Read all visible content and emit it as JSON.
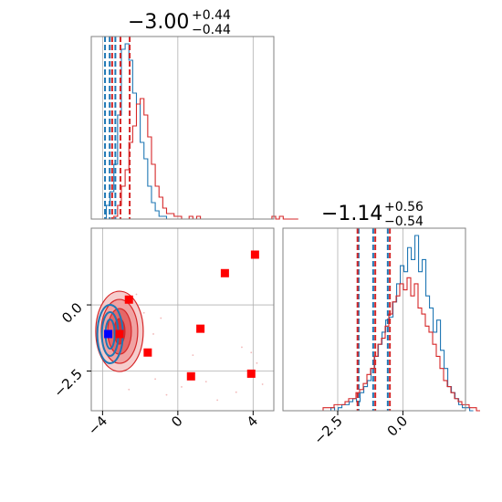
{
  "colors": {
    "series_blue": "#1f77b4",
    "series_red": "#d62728",
    "marker_red": "#ff0000",
    "marker_blue": "#0000ff",
    "grid": "#b0b0b0",
    "frame": "#808080"
  },
  "panels": {
    "p1": {
      "title_value": "−3.00",
      "title_sup": "+0.44",
      "title_sub": "−0.44"
    },
    "p2": {
      "title_value": "−1.14",
      "title_sup": "+0.56",
      "title_sub": "−0.54"
    }
  },
  "chart_data": [
    {
      "type": "histogram",
      "panel": "marginal-param-1",
      "xlim": [
        -4.6,
        5.1
      ],
      "grid": true,
      "bin_width": 0.2,
      "series": [
        {
          "color": "blue",
          "bin_start": -4.6,
          "counts": [
            0,
            0,
            0,
            0,
            5,
            10,
            20,
            38,
            62,
            64,
            58,
            46,
            42,
            28,
            22,
            12,
            6,
            3,
            1,
            1,
            0,
            0,
            0,
            0
          ],
          "quantile_lines": [
            -3.87,
            -3.62,
            -3.32
          ]
        },
        {
          "color": "red",
          "bin_start": -4.6,
          "counts": [
            0,
            0,
            0,
            0,
            0,
            0,
            1,
            5,
            12,
            18,
            28,
            34,
            42,
            44,
            38,
            30,
            20,
            12,
            8,
            4,
            2,
            2,
            1,
            1,
            0,
            0,
            1,
            0,
            1,
            0,
            0,
            0,
            0,
            0,
            0,
            0,
            0,
            0,
            0,
            0,
            0,
            0,
            0,
            0,
            0,
            0,
            0,
            0,
            1,
            0,
            1,
            0,
            0,
            0,
            0
          ],
          "quantile_lines": [
            -3.49,
            -3.05,
            -2.56
          ]
        }
      ]
    },
    {
      "type": "scatter",
      "panel": "joint-param-1-vs-param-2",
      "xlim": [
        -4.6,
        5.1
      ],
      "ylim": [
        -4.0,
        2.9
      ],
      "x_ticks": [
        -4,
        0,
        4
      ],
      "x_tick_labels": [
        "−4",
        "0",
        "4"
      ],
      "y_ticks": [
        0.0,
        -2.5
      ],
      "y_tick_labels": [
        "0.0",
        "−2.5"
      ],
      "grid": true,
      "series": [
        {
          "color": "red",
          "marker": "square",
          "points": [
            [
              4.1,
              1.9
            ],
            [
              2.5,
              1.2
            ],
            [
              -2.6,
              0.2
            ],
            [
              1.2,
              -0.9
            ],
            [
              -3.1,
              -1.1
            ],
            [
              -1.6,
              -1.8
            ],
            [
              0.7,
              -2.7
            ],
            [
              3.9,
              -2.6
            ]
          ]
        },
        {
          "color": "blue",
          "marker": "square",
          "points": [
            [
              -3.7,
              -1.1
            ]
          ]
        }
      ],
      "density_regions": {
        "red_center": [
          -3.1,
          -1.0
        ],
        "blue_center": [
          -3.6,
          -1.1
        ]
      }
    },
    {
      "type": "histogram",
      "panel": "marginal-param-2",
      "xlim": [
        -4.6,
        2.4
      ],
      "x_ticks": [
        -2.5,
        0.0
      ],
      "x_tick_labels": [
        "−2.5",
        "0.0"
      ],
      "grid": true,
      "bin_width": 0.14,
      "series": [
        {
          "color": "blue",
          "bin_start": -2.9,
          "counts": [
            0,
            1,
            0,
            1,
            2,
            2,
            3,
            4,
            3,
            6,
            8,
            10,
            14,
            18,
            22,
            26,
            30,
            31,
            36,
            42,
            48,
            46,
            54,
            50,
            58,
            46,
            50,
            38,
            34,
            26,
            30,
            20,
            14,
            8,
            6,
            4,
            2,
            1,
            1,
            0
          ],
          "quantile_lines": [
            -1.7,
            -1.14,
            -0.58
          ]
        },
        {
          "color": "red",
          "bin_start": -3.2,
          "counts": [
            0,
            1,
            1,
            1,
            2,
            2,
            2,
            3,
            4,
            4,
            6,
            7,
            9,
            12,
            14,
            18,
            22,
            24,
            28,
            32,
            36,
            38,
            42,
            40,
            44,
            38,
            42,
            34,
            32,
            28,
            26,
            22,
            18,
            14,
            10,
            8,
            6,
            4,
            3,
            2,
            2,
            1,
            1,
            0
          ],
          "quantile_lines": [
            -1.74,
            -1.06,
            -0.5
          ]
        }
      ]
    }
  ]
}
